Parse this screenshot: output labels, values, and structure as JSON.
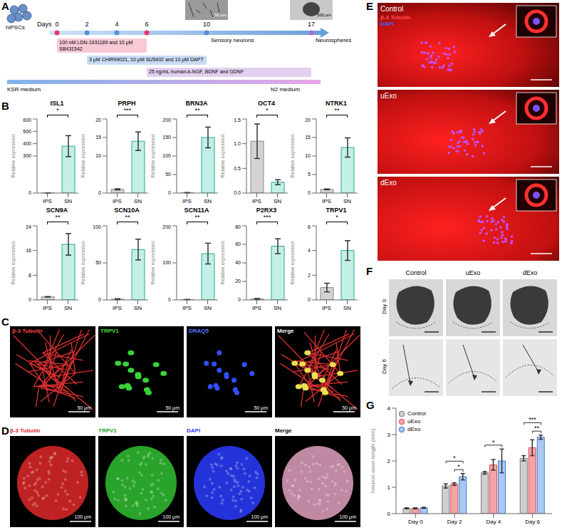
{
  "chart_data": [
    {
      "type": "bar",
      "title": "ISL1",
      "categories": [
        "IPS",
        "SN"
      ],
      "values": [
        1,
        380
      ],
      "errors": [
        0.45,
        85
      ],
      "colors": [
        "#d3d3d3",
        "#c2efe6"
      ],
      "ylim": [
        0,
        600
      ],
      "yticks": [
        0,
        300,
        400,
        500,
        600
      ],
      "y_label": "Relative expression",
      "significance": "*"
    },
    {
      "type": "bar",
      "title": "PRPH",
      "categories": [
        "IPS",
        "SN"
      ],
      "values": [
        1,
        14
      ],
      "errors": [
        0.15,
        2.5
      ],
      "colors": [
        "#d3d3d3",
        "#c2efe6"
      ],
      "ylim": [
        0,
        20
      ],
      "yticks": [
        0,
        10,
        15,
        20
      ],
      "y_label": "Relative expression",
      "significance": "***"
    },
    {
      "type": "bar",
      "title": "BRN3A",
      "categories": [
        "IPS",
        "SN"
      ],
      "values": [
        1,
        150
      ],
      "errors": [
        0.4,
        28
      ],
      "colors": [
        "#d3d3d3",
        "#c2efe6"
      ],
      "ylim": [
        0,
        200
      ],
      "yticks": [
        0,
        50,
        100,
        150,
        200
      ],
      "y_label": "Relative expression",
      "significance": "**"
    },
    {
      "type": "bar",
      "title": "OCT4",
      "categories": [
        "IPS",
        "SN"
      ],
      "values": [
        1.05,
        0.22
      ],
      "errors": [
        0.35,
        0.05
      ],
      "colors": [
        "#d3d3d3",
        "#c2efe6"
      ],
      "ylim": [
        0,
        1.5
      ],
      "yticks": [
        {
          "value": 0,
          "label": "0.0"
        },
        {
          "value": 0.5,
          "label": "0.5"
        },
        {
          "value": 1,
          "label": "1.0"
        },
        {
          "value": 1.5,
          "label": "1.5"
        }
      ],
      "y_label": "Relative expression",
      "significance": "*"
    },
    {
      "type": "bar",
      "title": "NTRK1",
      "categories": [
        "IPS",
        "SN"
      ],
      "values": [
        1,
        12.3
      ],
      "errors": [
        0.1,
        2.6
      ],
      "colors": [
        "#d3d3d3",
        "#c2efe6"
      ],
      "ylim": [
        0,
        20
      ],
      "yticks": [
        0,
        5,
        10,
        15,
        20
      ],
      "y_label": "Relative expression",
      "significance": "**"
    },
    {
      "type": "bar",
      "title": "SCN9A",
      "categories": [
        "IPS",
        "SN"
      ],
      "values": [
        1,
        18
      ],
      "errors": [
        0.08,
        3.5
      ],
      "colors": [
        "#d3d3d3",
        "#c2efe6"
      ],
      "ylim": [
        0,
        24
      ],
      "yticks": [
        0,
        8,
        16,
        24
      ],
      "y_label": "Relative expression",
      "significance": "**"
    },
    {
      "type": "bar",
      "title": "SCN10A",
      "categories": [
        "IPS",
        "SN"
      ],
      "values": [
        1,
        68
      ],
      "errors": [
        0.6,
        14
      ],
      "colors": [
        "#d3d3d3",
        "#c2efe6"
      ],
      "ylim": [
        0,
        100
      ],
      "yticks": [
        0,
        50,
        100
      ],
      "y_label": "Relative expression",
      "significance": "**"
    },
    {
      "type": "bar",
      "title": "SCN11A",
      "categories": [
        "IPS",
        "SN"
      ],
      "values": [
        1,
        125
      ],
      "errors": [
        0.4,
        28
      ],
      "colors": [
        "#d3d3d3",
        "#c2efe6"
      ],
      "ylim": [
        0,
        200
      ],
      "yticks": [
        0,
        100,
        200
      ],
      "y_label": "Relative expression",
      "significance": "**"
    },
    {
      "type": "bar",
      "title": "P2RX3",
      "categories": [
        "IPS",
        "SN"
      ],
      "values": [
        1,
        58
      ],
      "errors": [
        0.6,
        8
      ],
      "colors": [
        "#d3d3d3",
        "#c2efe6"
      ],
      "ylim": [
        0,
        80
      ],
      "yticks": [
        0,
        20,
        40,
        60,
        80
      ],
      "y_label": "Relative expression",
      "significance": "***"
    },
    {
      "type": "bar",
      "title": "TRPV1",
      "categories": [
        "IPS",
        "SN"
      ],
      "values": [
        1,
        4
      ],
      "errors": [
        0.35,
        0.8
      ],
      "colors": [
        "#d3d3d3",
        "#c2efe6"
      ],
      "ylim": [
        0,
        6
      ],
      "yticks": [
        0,
        2,
        4,
        6
      ],
      "y_label": "Relative expression",
      "significance": "*"
    },
    {
      "type": "bar",
      "categories": [
        "Day 0",
        "Day 2",
        "Day 4",
        "Day 6"
      ],
      "series": [
        {
          "name": "Control",
          "color": "#cfcfcf",
          "values": [
            0.2,
            1.05,
            1.55,
            2.1
          ],
          "errors": [
            0.02,
            0.08,
            0.05,
            0.1
          ]
        },
        {
          "name": "uExo",
          "color": "#f6a3a8",
          "values": [
            0.2,
            1.12,
            1.85,
            2.5
          ],
          "errors": [
            0.02,
            0.05,
            0.2,
            0.3
          ]
        },
        {
          "name": "dExo",
          "color": "#a9c9f2",
          "values": [
            0.22,
            1.4,
            2.0,
            2.9
          ],
          "errors": [
            0.02,
            0.12,
            0.45,
            0.08
          ]
        }
      ],
      "ylim": [
        0,
        4
      ],
      "yticks": [
        0,
        1,
        2,
        3,
        4
      ],
      "y_label": "Neuron axon length (mm)",
      "legend": "top-left",
      "significance": [
        {
          "category": "Day 2",
          "from": "uExo",
          "to": "dExo",
          "label": "*"
        },
        {
          "category": "Day 2",
          "from": "Control",
          "to": "dExo",
          "label": "*"
        },
        {
          "category": "Day 4",
          "from": "Control",
          "to": "dExo",
          "label": "*"
        },
        {
          "category": "Day 6",
          "from": "uExo",
          "to": "dExo",
          "label": "**"
        },
        {
          "category": "Day 6",
          "from": "Control",
          "to": "dExo",
          "label": "***"
        }
      ]
    }
  ],
  "panel_labels": [
    "A",
    "B",
    "C",
    "D",
    "E",
    "F",
    "G"
  ],
  "panel_a": {
    "start": "hiPSCs",
    "days_label": "Days",
    "days": [
      0,
      2,
      4,
      6,
      10,
      17
    ],
    "steps": [
      "100 nM LDN-1931189 and 10 μM SB431542",
      "3 μM CHIR99021, 10 μM SU5402 and 10 μM DAPT",
      "25 ng/mL human-b-NGF, BDNF and GDNF"
    ],
    "stages": [
      "Sensory neurons",
      "Neurospheres"
    ],
    "scale_bars": [
      "50 μm",
      "300 μm"
    ],
    "media": [
      "KSR medium",
      "N2 medium"
    ]
  },
  "panel_c": {
    "channels": [
      "β-3 Tubulin",
      "TRPV1",
      "DRAQ5",
      "Merge"
    ],
    "scale_bar": "50 μm"
  },
  "panel_d": {
    "channels": [
      "β-3 Tubulin",
      "TRPV1",
      "DAPI",
      "Merge"
    ],
    "scale_bar": "100 μm"
  },
  "panel_e": {
    "conditions": [
      "Control",
      "uExo",
      "dExo"
    ],
    "stains": [
      "β-3 Tubulin",
      "DAPI"
    ]
  },
  "panel_f": {
    "conditions": [
      "Control",
      "uExo",
      "dExo"
    ],
    "days": [
      "Day 0",
      "Day 6"
    ]
  }
}
